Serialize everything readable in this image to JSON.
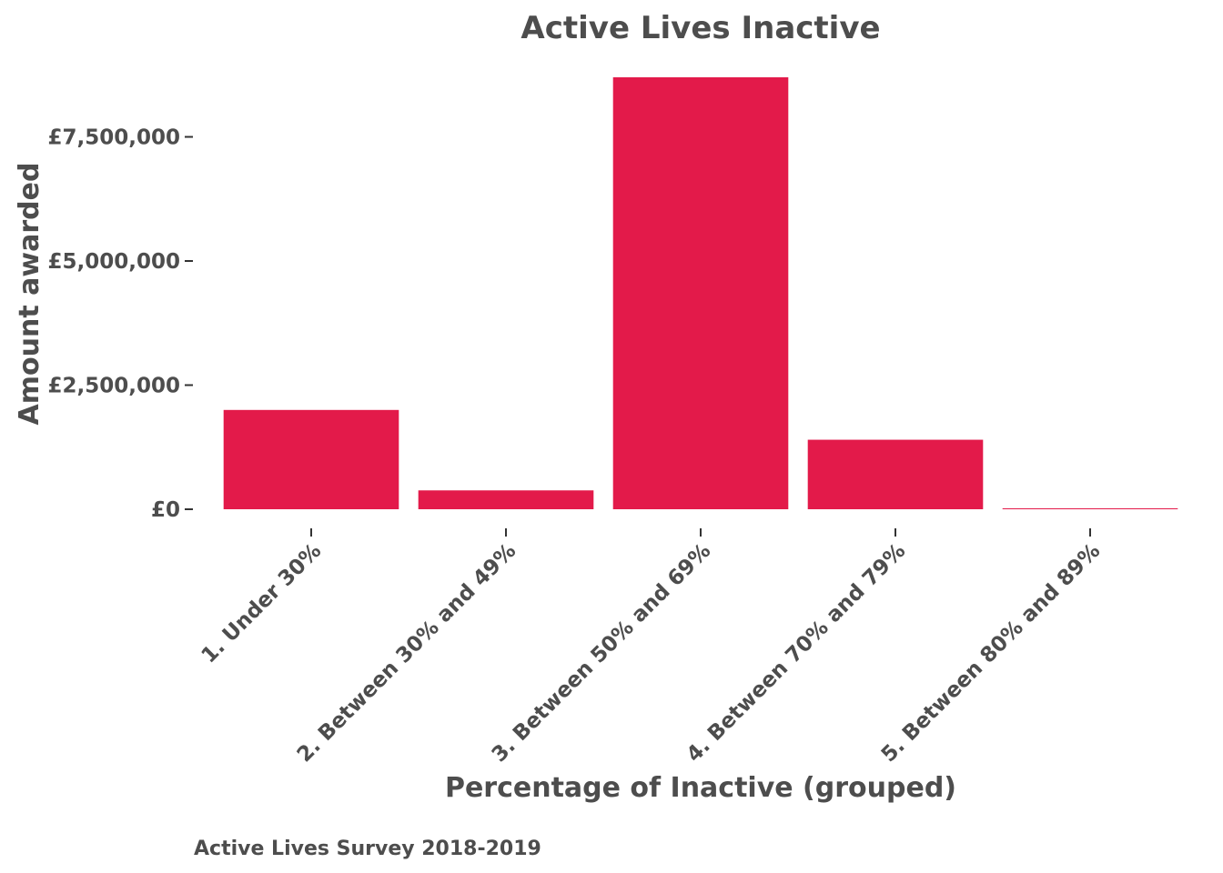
{
  "chart_data": {
    "type": "bar",
    "title": "Active Lives Inactive",
    "xlabel": "Percentage of Inactive (grouped)",
    "ylabel": "Amount awarded",
    "caption": "Active Lives Survey 2018-2019",
    "categories": [
      "1. Under 30%",
      "2. Between 30% and 49%",
      "3. Between 50% and 69%",
      "4. Between 70% and 79%",
      "5. Between 80% and 89%"
    ],
    "values": [
      2000000,
      380000,
      8700000,
      1400000,
      15000
    ],
    "ylim": [
      0,
      8700000
    ],
    "yticks": [
      0,
      2500000,
      5000000,
      7500000
    ],
    "ytick_labels": [
      "£0",
      "£2,500,000",
      "£5,000,000",
      "£7,500,000"
    ],
    "bar_color": "#e31a4a",
    "text_color": "#4d4d4d",
    "grid": false,
    "legend": "none"
  }
}
